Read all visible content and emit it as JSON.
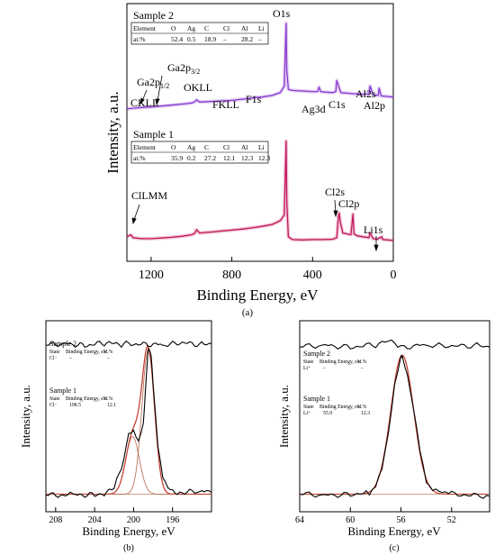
{
  "panels": {
    "a": {
      "caption": "(a)"
    },
    "b": {
      "caption": "(b)"
    },
    "c": {
      "caption": "(c)"
    }
  },
  "chart_data": [
    {
      "id": "a",
      "type": "line",
      "xlabel": "Binding Energy, eV",
      "ylabel": "Intensity, a.u.",
      "xlim": [
        1320,
        0
      ],
      "x_reversed": true,
      "xticks": [
        1200,
        800,
        400,
        0
      ],
      "grid": false,
      "series": [
        {
          "name": "Sample 2",
          "color": "#8a3ccf",
          "x": [
            1320,
            1290,
            1250,
            1200,
            1150,
            1100,
            1050,
            1000,
            985,
            975,
            960,
            900,
            850,
            800,
            750,
            700,
            688,
            650,
            600,
            560,
            540,
            531,
            528,
            520,
            500,
            450,
            400,
            375,
            368,
            360,
            340,
            300,
            285,
            280,
            260,
            200,
            150,
            121,
            115,
            100,
            75,
            70,
            60,
            30,
            0
          ],
          "y": [
            0.42,
            0.48,
            0.55,
            0.6,
            0.68,
            0.76,
            0.85,
            0.95,
            1.05,
            1.25,
            1.05,
            1.1,
            1.15,
            1.2,
            1.3,
            1.4,
            1.45,
            1.5,
            1.65,
            1.9,
            2.5,
            8.2,
            4.0,
            2.2,
            2.1,
            2.05,
            2.0,
            2.0,
            2.4,
            2.0,
            1.95,
            1.9,
            2.0,
            3.0,
            1.9,
            1.8,
            1.75,
            1.8,
            2.5,
            1.7,
            1.65,
            2.3,
            1.6,
            1.55,
            1.5
          ]
        },
        {
          "name": "Sample 1",
          "color": "#c2185b",
          "x": [
            1320,
            1300,
            1290,
            1250,
            1200,
            1150,
            1100,
            1050,
            1000,
            985,
            975,
            960,
            900,
            850,
            800,
            750,
            700,
            650,
            600,
            560,
            540,
            531,
            528,
            520,
            500,
            450,
            400,
            350,
            300,
            280,
            272,
            268,
            262,
            250,
            210,
            200,
            195,
            180,
            150,
            121,
            115,
            100,
            80,
            56,
            55,
            50,
            30,
            0
          ],
          "y": [
            0.25,
            0.35,
            0.2,
            0.15,
            0.15,
            0.18,
            0.22,
            0.27,
            0.35,
            0.42,
            0.62,
            0.45,
            0.5,
            0.55,
            0.6,
            0.65,
            0.72,
            0.8,
            0.9,
            1.1,
            1.4,
            5.3,
            2.2,
            0.25,
            0.1,
            0.08,
            0.1,
            0.1,
            0.12,
            0.2,
            1.3,
            1.5,
            1.0,
            0.45,
            0.35,
            1.45,
            0.4,
            0.3,
            0.25,
            0.2,
            0.45,
            0.15,
            0.12,
            0.25,
            0.15,
            0.1,
            0.08,
            0.05
          ]
        }
      ],
      "peak_labels": [
        "Ga2p1/2",
        "Ga2p3/2",
        "OKLL",
        "CKLL",
        "FKLL",
        "F1s",
        "O1s",
        "Ag3d",
        "C1s",
        "Al2s",
        "Al2p",
        "Cl2s",
        "Cl2p",
        "Li1s",
        "ClLMM"
      ],
      "tables": [
        {
          "title": "Sample 2",
          "header": [
            "Element",
            "O",
            "Ag",
            "C",
            "Cl",
            "Al",
            "Li"
          ],
          "row": [
            "at.%",
            "52.4",
            "0.5",
            "18.9",
            "–",
            "28.2",
            "–"
          ]
        },
        {
          "title": "Sample 1",
          "header": [
            "Element",
            "O",
            "Ag",
            "C",
            "Cl",
            "Al",
            "Li"
          ],
          "row": [
            "at.%",
            "35.9",
            "0.2",
            "27.2",
            "12.1",
            "12.3",
            "12.3"
          ]
        }
      ]
    },
    {
      "id": "b",
      "type": "line",
      "xlabel": "Binding Energy, eV",
      "ylabel": "Intensity, a.u.",
      "xlim": [
        209,
        192
      ],
      "x_reversed": true,
      "xticks": [
        208,
        204,
        200,
        196
      ],
      "ylim": [
        0,
        10
      ],
      "series": [
        {
          "name": "Sample 2",
          "color": "#000000",
          "x": [
            209,
            207,
            205,
            203,
            201,
            199,
            197,
            195,
            193,
            192
          ],
          "y": [
            9.2,
            9.3,
            9.2,
            9.3,
            9.25,
            9.3,
            9.2,
            9.3,
            9.25,
            9.3
          ]
        },
        {
          "name": "Sample 1",
          "color": "#000000",
          "x": [
            209,
            206,
            204,
            203,
            202,
            201,
            200.5,
            200,
            199.5,
            199,
            198.8,
            198.5,
            198.2,
            198,
            197.5,
            197,
            196,
            195,
            193,
            192
          ],
          "y": [
            0.35,
            0.35,
            0.4,
            0.45,
            0.7,
            2.4,
            4.0,
            4.1,
            3.4,
            4.6,
            6.5,
            9.0,
            8.6,
            7.0,
            3.2,
            1.2,
            0.6,
            0.5,
            0.55,
            0.5
          ]
        }
      ],
      "fit_components": [
        {
          "center": 200.1,
          "height": 3.4,
          "sigma": 0.7
        },
        {
          "center": 198.5,
          "height": 8.5,
          "sigma": 0.65
        }
      ],
      "tables": [
        {
          "title": "Sample 2",
          "header": [
            "State",
            "Binding Energy, eV",
            "at.%"
          ],
          "row": [
            "Cl⁻",
            "–",
            "–"
          ]
        },
        {
          "title": "Sample 1",
          "header": [
            "State",
            "Binding Energy, eV",
            "at.%"
          ],
          "row": [
            "Cl⁻",
            "198.5",
            "12.1"
          ]
        }
      ]
    },
    {
      "id": "c",
      "type": "line",
      "xlabel": "Binding Energy, eV",
      "ylabel": "Intensity, a.u.",
      "xlim": [
        64,
        49
      ],
      "x_reversed": true,
      "xticks": [
        64,
        60,
        56,
        52
      ],
      "ylim": [
        0,
        10
      ],
      "series": [
        {
          "name": "Sample 2",
          "color": "#000000",
          "x": [
            64,
            62,
            60,
            58,
            57,
            56,
            54,
            52,
            50,
            49
          ],
          "y": [
            9.1,
            9.2,
            9.1,
            9.2,
            9.4,
            9.1,
            9.2,
            9.1,
            9.2,
            9.1
          ]
        },
        {
          "name": "Sample 1",
          "color": "#000000",
          "x": [
            64,
            62,
            60,
            58.5,
            58,
            57.5,
            57,
            56.5,
            56,
            55.9,
            55.5,
            55,
            54.5,
            54,
            53.5,
            52,
            50,
            49
          ],
          "y": [
            0.4,
            0.35,
            0.4,
            0.5,
            0.8,
            1.8,
            4.0,
            6.8,
            8.4,
            8.6,
            7.6,
            5.4,
            3.0,
            1.2,
            0.6,
            0.4,
            0.35,
            0.3
          ]
        }
      ],
      "fit_components": [
        {
          "center": 55.9,
          "height": 8.2,
          "sigma": 0.9
        }
      ],
      "tables": [
        {
          "title": "Sample 2",
          "header": [
            "State",
            "Binding Energy, eV",
            "at.%"
          ],
          "row": [
            "Li⁺",
            "–",
            "–"
          ]
        },
        {
          "title": "Sample 1",
          "header": [
            "State",
            "Binding Energy, eV",
            "at.%"
          ],
          "row": [
            "Li⁺",
            "55.9",
            "12.3"
          ]
        }
      ]
    }
  ]
}
